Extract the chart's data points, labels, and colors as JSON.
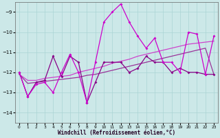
{
  "x": [
    0,
    1,
    2,
    3,
    4,
    5,
    6,
    7,
    8,
    9,
    10,
    11,
    12,
    13,
    14,
    15,
    16,
    17,
    18,
    19,
    20,
    21,
    22,
    23
  ],
  "y_line1": [
    -12.0,
    -13.2,
    -12.6,
    -12.5,
    -13.0,
    -12.0,
    -11.1,
    -12.0,
    -13.5,
    -11.5,
    -9.5,
    -9.0,
    -8.6,
    -9.5,
    -10.2,
    -10.8,
    -10.3,
    -11.5,
    -11.5,
    -12.0,
    -10.0,
    -10.1,
    -12.1,
    -10.2
  ],
  "y_line2": [
    -12.0,
    -13.2,
    -12.5,
    -12.4,
    -11.2,
    -12.2,
    -11.2,
    -11.5,
    -13.5,
    -12.5,
    -11.5,
    -11.5,
    -11.5,
    -12.0,
    -11.8,
    -11.2,
    -11.5,
    -11.5,
    -12.0,
    -11.8,
    -12.0,
    -12.0,
    -12.1,
    -12.1
  ],
  "y_trend1": [
    -12.1,
    -12.4,
    -12.4,
    -12.3,
    -12.25,
    -12.2,
    -12.15,
    -12.0,
    -11.9,
    -11.8,
    -11.7,
    -11.55,
    -11.45,
    -11.35,
    -11.2,
    -11.1,
    -11.0,
    -10.9,
    -10.8,
    -10.7,
    -10.6,
    -10.55,
    -10.5,
    -10.45
  ],
  "y_trend2": [
    -12.1,
    -12.55,
    -12.5,
    -12.45,
    -12.4,
    -12.35,
    -12.3,
    -12.25,
    -12.15,
    -12.1,
    -12.0,
    -11.9,
    -11.8,
    -11.7,
    -11.6,
    -11.5,
    -11.4,
    -11.3,
    -11.2,
    -11.1,
    -11.0,
    -10.9,
    -10.8,
    -12.1
  ],
  "color_line1": "#cc00cc",
  "color_line2": "#880088",
  "color_trend1": "#cc44cc",
  "color_trend2": "#993399",
  "xlabel": "Windchill (Refroidissement éolien,°C)",
  "ylim": [
    -14.5,
    -8.5
  ],
  "xlim": [
    -0.5,
    23.5
  ],
  "yticks": [
    -14,
    -13,
    -12,
    -11,
    -10,
    -9
  ],
  "xticks": [
    0,
    1,
    2,
    3,
    4,
    5,
    6,
    7,
    8,
    9,
    10,
    11,
    12,
    13,
    14,
    15,
    16,
    17,
    18,
    19,
    20,
    21,
    22,
    23
  ],
  "bg_color": "#cce8e8",
  "grid_color": "#aad4d4"
}
